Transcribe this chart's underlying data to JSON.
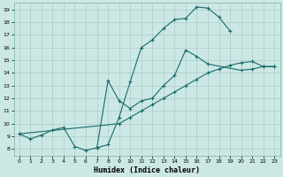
{
  "xlabel": "Humidex (Indice chaleur)",
  "bg_color": "#cce8e5",
  "grid_color": "#aaccca",
  "line_color": "#1a6b6b",
  "xlim": [
    -0.5,
    23.5
  ],
  "ylim": [
    7.5,
    19.5
  ],
  "xticks": [
    0,
    1,
    2,
    3,
    4,
    5,
    6,
    7,
    8,
    9,
    10,
    11,
    12,
    13,
    14,
    15,
    16,
    17,
    18,
    19,
    20,
    21,
    22,
    23
  ],
  "yticks": [
    8,
    9,
    10,
    11,
    12,
    13,
    14,
    15,
    16,
    17,
    18,
    19
  ],
  "line1_x": [
    0,
    1,
    2,
    3,
    4,
    5,
    6,
    7,
    8,
    9,
    10,
    11,
    12,
    13,
    14,
    15,
    16,
    17,
    18,
    19
  ],
  "line1_y": [
    9.2,
    8.8,
    9.1,
    9.5,
    9.7,
    8.2,
    7.9,
    8.1,
    8.35,
    10.5,
    13.3,
    16.0,
    16.6,
    17.5,
    18.2,
    18.3,
    19.2,
    19.1,
    18.4,
    17.3
  ],
  "line2_x": [
    7,
    8,
    9,
    10,
    11,
    12,
    13,
    14,
    15,
    16,
    17,
    20,
    21,
    22,
    23
  ],
  "line2_y": [
    8.1,
    13.4,
    11.8,
    11.2,
    11.8,
    12.0,
    13.0,
    13.8,
    15.8,
    15.3,
    14.7,
    14.2,
    14.3,
    14.5,
    14.5
  ],
  "line3_x": [
    0,
    9,
    10,
    11,
    12,
    13,
    14,
    15,
    16,
    17,
    18,
    19,
    20,
    21,
    22,
    23
  ],
  "line3_y": [
    9.2,
    10.0,
    10.5,
    11.0,
    11.5,
    12.0,
    12.5,
    13.0,
    13.5,
    14.0,
    14.3,
    14.6,
    14.8,
    14.9,
    14.5,
    14.5
  ]
}
